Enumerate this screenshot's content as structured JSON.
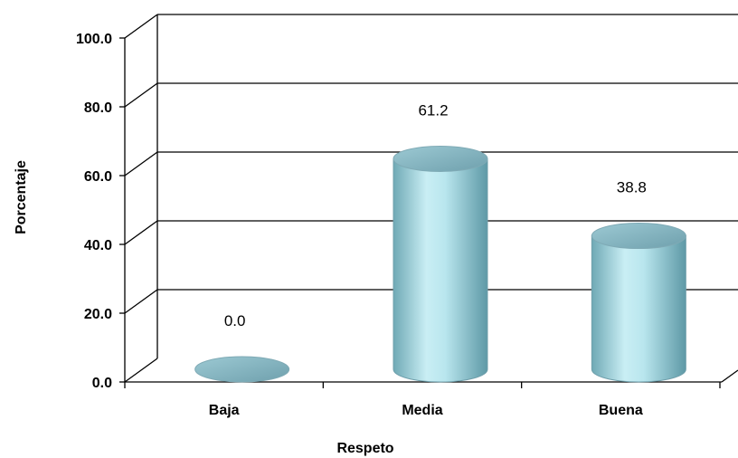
{
  "chart_data": {
    "type": "bar",
    "categories": [
      "Baja",
      "Media",
      "Buena"
    ],
    "values": [
      0.0,
      61.2,
      38.8
    ],
    "value_labels": [
      "0.0",
      "61.2",
      "38.8"
    ],
    "title": "",
    "xlabel": "Respeto",
    "ylabel": "Porcentaje",
    "ylim": [
      0,
      100
    ],
    "yticks": [
      "0.0",
      "20.0",
      "40.0",
      "60.0",
      "80.0",
      "100.0"
    ],
    "grid": true,
    "style": "3d-cylinder"
  },
  "colors": {
    "bar_light": "#d6f2f7",
    "bar_mid": "#a6dce6",
    "bar_dark": "#5e99a6",
    "bar_top": "#86b8c4",
    "axis": "#000000"
  }
}
